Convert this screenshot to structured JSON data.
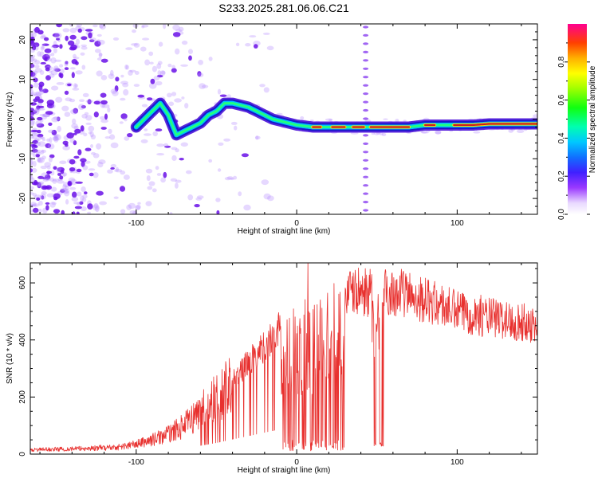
{
  "title": "S233.2025.281.06.06.C21",
  "colors": {
    "snr_line": "#e8312f",
    "spectrum_purple": "#7a1ef0",
    "spectrum_ridge_core": "#c81e1e",
    "axis": "#000000"
  },
  "chart_data": [
    {
      "type": "heatmap",
      "name": "spectrogram",
      "xlabel": "Height of straight line (km)",
      "ylabel": "Frequency (Hz)",
      "xlim": [
        -166,
        150
      ],
      "ylim": [
        -24,
        24
      ],
      "x_ticks": [
        -100,
        0,
        100
      ],
      "y_ticks": [
        -20,
        -10,
        0,
        10,
        20
      ],
      "ridge": {
        "x": [
          -100,
          -95,
          -90,
          -85,
          -80,
          -75,
          -70,
          -65,
          -60,
          -55,
          -50,
          -45,
          -40,
          -35,
          -30,
          -25,
          -20,
          -15,
          -10,
          -5,
          0,
          10,
          20,
          30,
          40,
          50,
          60,
          70,
          80,
          90,
          100,
          110,
          120,
          130,
          140,
          150
        ],
        "y": [
          -2,
          0,
          2,
          4,
          1,
          -4,
          -3,
          -2,
          -1,
          1,
          2,
          4,
          4,
          3.5,
          3,
          2,
          1,
          0,
          -0.5,
          -1,
          -1.5,
          -2,
          -2,
          -2,
          -2,
          -2,
          -2,
          -2,
          -1.5,
          -1.5,
          -1.5,
          -1.5,
          -1.2,
          -1.2,
          -1.2,
          -1.2
        ]
      },
      "vertical_line_x": 43,
      "colorbar": {
        "label": "Normalized spectral amplitude",
        "ticks": [
          0.0,
          0.2,
          0.4,
          0.6,
          0.8
        ],
        "tick_labels": [
          "0.0",
          "0.2",
          "0.4",
          "0.6",
          "0.8"
        ],
        "range": [
          0,
          1
        ]
      }
    },
    {
      "type": "line",
      "name": "snr",
      "xlabel": "Height of straight line (km)",
      "ylabel": "SNR (10 * v/v)",
      "xlim": [
        -166,
        150
      ],
      "ylim": [
        0,
        670
      ],
      "x_ticks": [
        -100,
        0,
        100
      ],
      "y_ticks": [
        0,
        200,
        400,
        600
      ],
      "envelope": {
        "x": [
          -166,
          -130,
          -110,
          -100,
          -90,
          -80,
          -70,
          -60,
          -50,
          -40,
          -30,
          -20,
          -10,
          0,
          10,
          20,
          30,
          40,
          50,
          60,
          70,
          80,
          90,
          100,
          110,
          120,
          130,
          140,
          150
        ],
        "y": [
          15,
          20,
          25,
          35,
          50,
          70,
          100,
          150,
          200,
          260,
          320,
          380,
          440,
          480,
          510,
          540,
          560,
          570,
          560,
          570,
          560,
          540,
          520,
          500,
          490,
          480,
          470,
          460,
          455
        ]
      },
      "dropouts": [
        [
          47,
          54
        ]
      ],
      "peak": {
        "x": 7,
        "y": 670
      }
    }
  ]
}
